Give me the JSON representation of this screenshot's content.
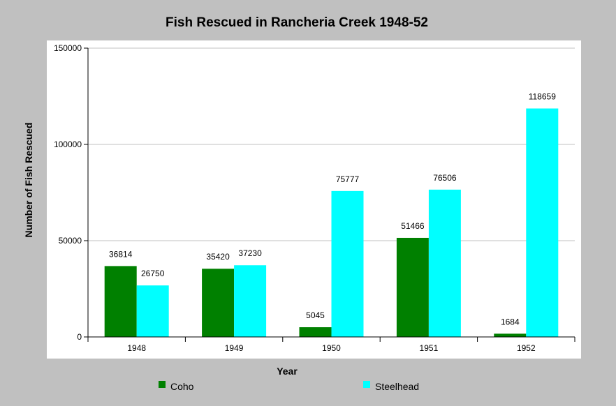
{
  "chart_data": {
    "type": "bar",
    "title": "Fish Rescued in Rancheria Creek 1948-52",
    "xlabel": "Year",
    "ylabel": "Number of Fish Rescued",
    "categories": [
      "1948",
      "1949",
      "1950",
      "1951",
      "1952"
    ],
    "series": [
      {
        "name": "Coho",
        "values": [
          36814,
          35420,
          5045,
          51466,
          1684
        ],
        "color": "#008000"
      },
      {
        "name": "Steelhead",
        "values": [
          26750,
          37230,
          75777,
          76506,
          118659
        ],
        "color": "#00ffff"
      }
    ],
    "ylim": [
      0,
      150000
    ],
    "yticks": [
      "0",
      "50000",
      "100000",
      "150000"
    ],
    "grid": true,
    "legend_position": "bottom",
    "colors": {
      "background": "#c0c0c0",
      "plot_area": "#ffffff",
      "gridline": "#c0c0c0"
    }
  }
}
